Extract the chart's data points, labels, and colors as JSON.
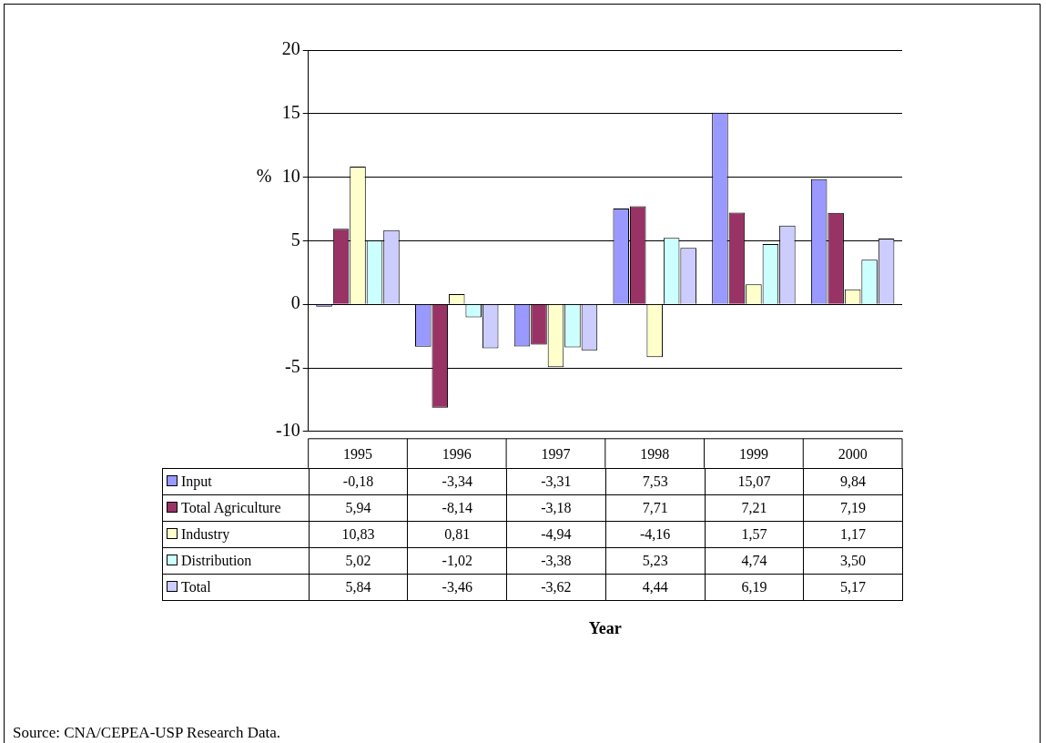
{
  "chart_data": {
    "type": "bar",
    "ylabel": "%",
    "categories": [
      "1995",
      "1996",
      "1997",
      "1998",
      "1999",
      "2000"
    ],
    "series": [
      {
        "name": "Input",
        "color": "#9999ff",
        "values": [
          -0.18,
          -3.34,
          -3.31,
          7.53,
          15.07,
          9.84
        ],
        "value_labels": [
          "-0,18",
          "-3,34",
          "-3,31",
          "7,53",
          "15,07",
          "9,84"
        ]
      },
      {
        "name": "Total Agriculture",
        "color": "#993366",
        "values": [
          5.94,
          -8.14,
          -3.18,
          7.71,
          7.21,
          7.19
        ],
        "value_labels": [
          "5,94",
          "-8,14",
          "-3,18",
          "7,71",
          "7,21",
          "7,19"
        ]
      },
      {
        "name": "Industry",
        "color": "#ffffcc",
        "values": [
          10.83,
          0.81,
          -4.94,
          -4.16,
          1.57,
          1.17
        ],
        "value_labels": [
          "10,83",
          "0,81",
          "-4,94",
          "-4,16",
          "1,57",
          "1,17"
        ]
      },
      {
        "name": "Distribution",
        "color": "#ccffff",
        "values": [
          5.02,
          -1.02,
          -3.38,
          5.23,
          4.74,
          3.5
        ],
        "value_labels": [
          "5,02",
          "-1,02",
          "-3,38",
          "5,23",
          "4,74",
          "3,50"
        ]
      },
      {
        "name": "Total",
        "color": "#ccccff",
        "values": [
          5.84,
          -3.46,
          -3.62,
          4.44,
          6.19,
          5.17
        ],
        "value_labels": [
          "5,84",
          "-3,46",
          "-3,62",
          "4,44",
          "6,19",
          "5,17"
        ]
      }
    ],
    "ylim": [
      -10,
      20
    ],
    "yticks": [
      -10,
      -5,
      0,
      5,
      10,
      15,
      20
    ],
    "grid": "y",
    "legend": "bottom",
    "annotations": [
      "Year",
      "Source: CNA/CEPEA-USP Research Data."
    ]
  }
}
